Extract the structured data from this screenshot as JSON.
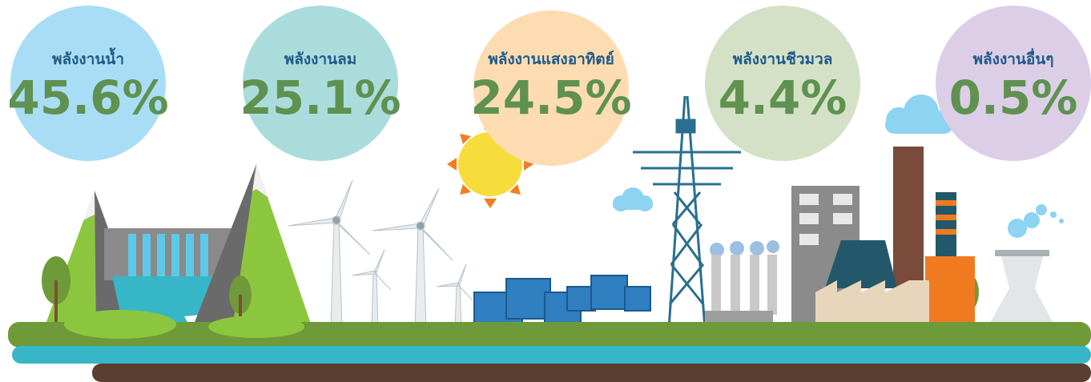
{
  "items": [
    {
      "label": "พลังงานน้ำ",
      "value": "45.6%"
    },
    {
      "label": "พลังงานลม",
      "value": "25.1%"
    },
    {
      "label": "พลังงานแสงอาทิตย์",
      "value": "24.5%"
    },
    {
      "label": "พลังงานชีวมวล",
      "value": "4.4%"
    },
    {
      "label": "พลังงานอื่นๆ",
      "value": "0.5%"
    }
  ]
}
